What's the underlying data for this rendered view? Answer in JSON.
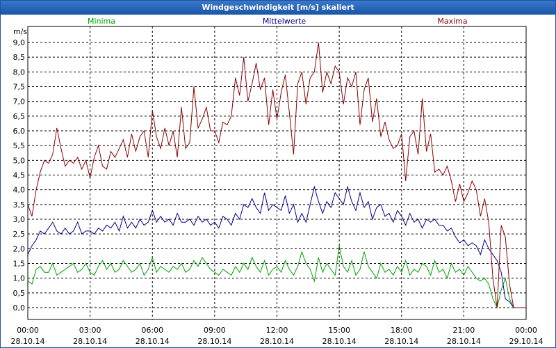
{
  "window": {
    "title": "Windgeschwindigkeit [m/s] skaliert"
  },
  "chart_data": {
    "type": "line",
    "title": "Windgeschwindigkeit [m/s] skaliert",
    "ylabel": "m/s",
    "xlabel": "",
    "ylim": [
      0,
      9.4
    ],
    "xlim": [
      0,
      24
    ],
    "grid": true,
    "yticks": [
      "0,0",
      "0,5",
      "1,0",
      "1,5",
      "2,0",
      "2,5",
      "3,0",
      "3,5",
      "4,0",
      "4,5",
      "5,0",
      "5,5",
      "6,0",
      "6,5",
      "7,0",
      "7,5",
      "8,0",
      "8,5",
      "9,0"
    ],
    "xticks": [
      {
        "time": "00:00",
        "date": "28.10.14"
      },
      {
        "time": "03:00",
        "date": "28.10.14"
      },
      {
        "time": "06:00",
        "date": "28.10.14"
      },
      {
        "time": "09:00",
        "date": "28.10.14"
      },
      {
        "time": "12:00",
        "date": "28.10.14"
      },
      {
        "time": "15:00",
        "date": "28.10.14"
      },
      {
        "time": "18:00",
        "date": "28.10.14"
      },
      {
        "time": "21:00",
        "date": "28.10.14"
      },
      {
        "time": "00:00",
        "date": "29.10.14"
      }
    ],
    "series": [
      {
        "name": "Minima",
        "color": "#00a000",
        "x": [
          0,
          0.2,
          0.4,
          0.6,
          0.8,
          1.0,
          1.2,
          1.4,
          1.6,
          1.8,
          2.0,
          2.2,
          2.4,
          2.6,
          2.8,
          3.0,
          3.2,
          3.4,
          3.6,
          3.8,
          4.0,
          4.2,
          4.4,
          4.6,
          4.8,
          5.0,
          5.2,
          5.4,
          5.6,
          5.8,
          6.0,
          6.2,
          6.4,
          6.6,
          6.8,
          7.0,
          7.2,
          7.4,
          7.6,
          7.8,
          8.0,
          8.2,
          8.4,
          8.6,
          8.8,
          9.0,
          9.2,
          9.4,
          9.6,
          9.8,
          10.0,
          10.2,
          10.4,
          10.6,
          10.8,
          11.0,
          11.2,
          11.4,
          11.6,
          11.8,
          12.0,
          12.2,
          12.4,
          12.6,
          12.8,
          13.0,
          13.2,
          13.4,
          13.6,
          13.8,
          14.0,
          14.2,
          14.4,
          14.6,
          14.8,
          15.0,
          15.2,
          15.4,
          15.6,
          15.8,
          16.0,
          16.2,
          16.4,
          16.6,
          16.8,
          17.0,
          17.2,
          17.4,
          17.6,
          17.8,
          18.0,
          18.2,
          18.4,
          18.6,
          18.8,
          19.0,
          19.2,
          19.4,
          19.6,
          19.8,
          20.0,
          20.2,
          20.4,
          20.6,
          20.8,
          21.0,
          21.2,
          21.4,
          21.6,
          21.8,
          22.0,
          22.2,
          22.4,
          22.6,
          22.8,
          23.0,
          23.2,
          23.4,
          23.6,
          24.0
        ],
        "values": [
          0.9,
          0.8,
          1.3,
          1.4,
          1.2,
          1.2,
          1.5,
          1.1,
          1.2,
          1.3,
          1.4,
          1.5,
          1.2,
          1.3,
          1.5,
          1.2,
          1.1,
          1.4,
          1.6,
          1.3,
          1.5,
          1.2,
          1.3,
          1.6,
          1.4,
          1.2,
          1.3,
          1.5,
          1.1,
          1.3,
          1.7,
          1.2,
          1.4,
          1.3,
          1.2,
          1.4,
          1.3,
          1.5,
          1.2,
          1.3,
          1.6,
          1.4,
          1.7,
          1.5,
          1.3,
          1.2,
          1.1,
          1.3,
          1.2,
          1.1,
          1.4,
          1.2,
          1.5,
          1.3,
          1.7,
          1.4,
          1.2,
          1.6,
          1.1,
          1.3,
          1.4,
          1.2,
          1.6,
          1.3,
          1.1,
          1.4,
          1.9,
          1.5,
          1.3,
          0.9,
          1.7,
          1.2,
          1.5,
          1.3,
          1.1,
          2.1,
          1.4,
          1.2,
          1.6,
          1.1,
          1.3,
          1.9,
          1.4,
          1.2,
          1.0,
          1.5,
          1.2,
          1.3,
          1.1,
          1.4,
          1.2,
          1.6,
          1.1,
          1.3,
          1.2,
          1.5,
          1.4,
          1.1,
          1.6,
          1.2,
          1.3,
          1.0,
          1.5,
          1.2,
          1.3,
          1.1,
          1.4,
          1.2,
          1.0,
          0.9,
          1.0,
          0.8,
          0.3,
          0.0,
          0.6,
          1.0,
          0.3,
          0.0,
          0.0,
          0.0
        ]
      },
      {
        "name": "Mittelwerte",
        "color": "#00008b",
        "x": [
          0,
          0.2,
          0.4,
          0.6,
          0.8,
          1.0,
          1.2,
          1.4,
          1.6,
          1.8,
          2.0,
          2.2,
          2.4,
          2.6,
          2.8,
          3.0,
          3.2,
          3.4,
          3.6,
          3.8,
          4.0,
          4.2,
          4.4,
          4.6,
          4.8,
          5.0,
          5.2,
          5.4,
          5.6,
          5.8,
          6.0,
          6.2,
          6.4,
          6.6,
          6.8,
          7.0,
          7.2,
          7.4,
          7.6,
          7.8,
          8.0,
          8.2,
          8.4,
          8.6,
          8.8,
          9.0,
          9.2,
          9.4,
          9.6,
          9.8,
          10.0,
          10.2,
          10.4,
          10.6,
          10.8,
          11.0,
          11.2,
          11.4,
          11.6,
          11.8,
          12.0,
          12.2,
          12.4,
          12.6,
          12.8,
          13.0,
          13.2,
          13.4,
          13.6,
          13.8,
          14.0,
          14.2,
          14.4,
          14.6,
          14.8,
          15.0,
          15.2,
          15.4,
          15.6,
          15.8,
          16.0,
          16.2,
          16.4,
          16.6,
          16.8,
          17.0,
          17.2,
          17.4,
          17.6,
          17.8,
          18.0,
          18.2,
          18.4,
          18.6,
          18.8,
          19.0,
          19.2,
          19.4,
          19.6,
          19.8,
          20.0,
          20.2,
          20.4,
          20.6,
          20.8,
          21.0,
          21.2,
          21.4,
          21.6,
          21.8,
          22.0,
          22.2,
          22.4,
          22.6,
          22.8,
          23.0,
          23.2,
          23.4,
          23.6,
          24.0
        ],
        "values": [
          1.8,
          2.1,
          2.3,
          2.6,
          2.5,
          2.7,
          2.9,
          2.6,
          2.5,
          2.7,
          2.5,
          2.6,
          2.9,
          2.5,
          2.6,
          2.6,
          2.5,
          2.7,
          2.6,
          2.8,
          2.7,
          2.9,
          2.6,
          3.1,
          2.7,
          2.9,
          2.7,
          3.0,
          2.8,
          2.9,
          3.3,
          2.9,
          3.1,
          2.9,
          3.0,
          2.8,
          3.2,
          2.9,
          2.9,
          3.0,
          2.8,
          3.1,
          2.9,
          3.0,
          2.8,
          2.9,
          2.7,
          3.1,
          3.0,
          2.8,
          3.2,
          3.0,
          3.5,
          3.4,
          3.7,
          3.4,
          3.2,
          3.9,
          3.3,
          3.5,
          3.4,
          3.3,
          3.8,
          3.2,
          3.5,
          2.9,
          3.2,
          2.9,
          3.5,
          4.1,
          3.6,
          3.2,
          3.6,
          3.4,
          3.9,
          3.7,
          3.5,
          4.1,
          3.6,
          3.3,
          3.9,
          3.4,
          3.6,
          3.0,
          3.4,
          3.5,
          3.1,
          3.2,
          2.9,
          3.3,
          3.1,
          2.8,
          3.2,
          2.9,
          3.0,
          2.7,
          3.0,
          2.9,
          3.0,
          2.8,
          2.8,
          2.6,
          2.7,
          2.4,
          2.2,
          2.3,
          2.1,
          2.2,
          2.1,
          1.8,
          2.3,
          2.0,
          1.8,
          1.6,
          1.2,
          0.3,
          0.2,
          0.0,
          0.0,
          0.0
        ]
      },
      {
        "name": "Maxima",
        "color": "#8b0000",
        "x": [
          0,
          0.2,
          0.4,
          0.6,
          0.8,
          1.0,
          1.2,
          1.4,
          1.6,
          1.8,
          2.0,
          2.2,
          2.4,
          2.6,
          2.8,
          3.0,
          3.2,
          3.4,
          3.6,
          3.8,
          4.0,
          4.2,
          4.4,
          4.6,
          4.8,
          5.0,
          5.2,
          5.4,
          5.6,
          5.8,
          6.0,
          6.2,
          6.4,
          6.6,
          6.8,
          7.0,
          7.2,
          7.4,
          7.6,
          7.8,
          8.0,
          8.2,
          8.4,
          8.6,
          8.8,
          9.0,
          9.2,
          9.4,
          9.6,
          9.8,
          10.0,
          10.2,
          10.4,
          10.6,
          10.8,
          11.0,
          11.2,
          11.4,
          11.6,
          11.8,
          12.0,
          12.2,
          12.4,
          12.6,
          12.8,
          13.0,
          13.2,
          13.4,
          13.6,
          13.8,
          14.0,
          14.2,
          14.4,
          14.6,
          14.8,
          15.0,
          15.2,
          15.4,
          15.6,
          15.8,
          16.0,
          16.2,
          16.4,
          16.6,
          16.8,
          17.0,
          17.2,
          17.4,
          17.6,
          17.8,
          18.0,
          18.2,
          18.4,
          18.6,
          18.8,
          19.0,
          19.2,
          19.4,
          19.6,
          19.8,
          20.0,
          20.2,
          20.4,
          20.6,
          20.8,
          21.0,
          21.2,
          21.4,
          21.6,
          21.8,
          22.0,
          22.2,
          22.4,
          22.6,
          22.8,
          23.0,
          23.2,
          23.4,
          23.6,
          24.0
        ],
        "values": [
          3.5,
          3.1,
          4.0,
          4.6,
          5.0,
          4.9,
          5.2,
          6.1,
          5.4,
          4.8,
          5.0,
          4.9,
          5.1,
          4.7,
          5.0,
          4.4,
          5.1,
          5.5,
          4.8,
          4.7,
          5.3,
          5.1,
          5.4,
          5.7,
          5.1,
          5.9,
          5.3,
          5.8,
          6.0,
          5.1,
          6.7,
          5.8,
          5.4,
          6.1,
          5.5,
          6.0,
          5.1,
          6.8,
          5.4,
          5.6,
          7.5,
          6.1,
          6.4,
          6.8,
          6.0,
          6.0,
          5.6,
          6.3,
          6.2,
          6.5,
          7.8,
          7.2,
          8.5,
          7.0,
          7.6,
          8.3,
          7.4,
          7.8,
          6.2,
          7.4,
          6.4,
          7.3,
          7.9,
          6.6,
          5.2,
          7.6,
          8.0,
          6.9,
          7.8,
          8.0,
          9.0,
          7.3,
          8.0,
          7.6,
          8.2,
          8.0,
          6.9,
          7.8,
          7.5,
          8.0,
          6.2,
          7.4,
          7.8,
          6.3,
          7.1,
          5.8,
          6.3,
          5.7,
          5.4,
          5.5,
          5.9,
          4.3,
          5.8,
          6.0,
          5.2,
          7.1,
          5.3,
          5.9,
          4.6,
          4.7,
          4.5,
          4.8,
          4.3,
          3.6,
          4.2,
          3.6,
          3.9,
          4.3,
          4.0,
          3.1,
          3.7,
          2.9,
          1.0,
          0.0,
          2.8,
          2.4,
          0.8,
          0.0,
          0.0,
          0.0
        ]
      }
    ]
  }
}
